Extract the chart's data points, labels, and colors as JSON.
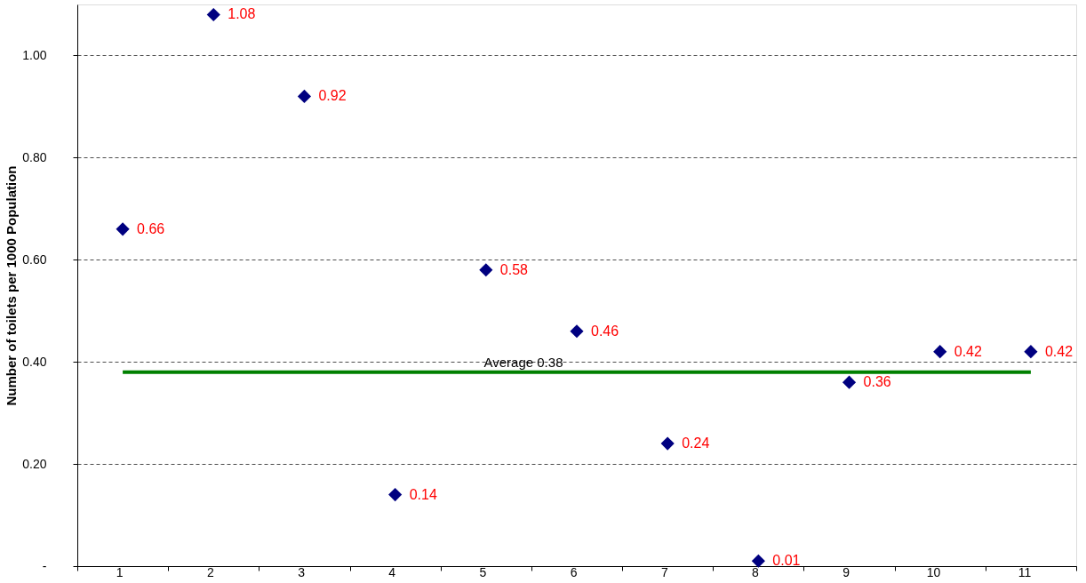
{
  "chart_data": {
    "type": "scatter",
    "ylabel": "Number of toilets per 1000 Population",
    "categories": [
      "1",
      "2",
      "3",
      "4",
      "5",
      "6",
      "7",
      "8",
      "9",
      "10",
      "11"
    ],
    "series": [
      {
        "color": "#000080",
        "values": [
          0.66,
          1.08,
          0.92,
          0.14,
          0.58,
          0.46,
          0.24,
          0.01,
          0.36,
          0.42,
          0.42
        ]
      }
    ],
    "marker": "diamond",
    "data_labels": true,
    "ylim": [
      0,
      1.1
    ],
    "yticks": [
      {
        "value": 0,
        "label": "-"
      },
      {
        "value": 0.2,
        "label": "0.20"
      },
      {
        "value": 0.4,
        "label": "0.40"
      },
      {
        "value": 0.6,
        "label": "0.60"
      },
      {
        "value": 0.8,
        "label": "0.80"
      },
      {
        "value": 1.0,
        "label": "1.00"
      }
    ],
    "grid": "y",
    "ref_lines": [
      {
        "axis": "y",
        "value": 0.38,
        "label": "Average 0.38",
        "color": "#008000"
      }
    ]
  }
}
